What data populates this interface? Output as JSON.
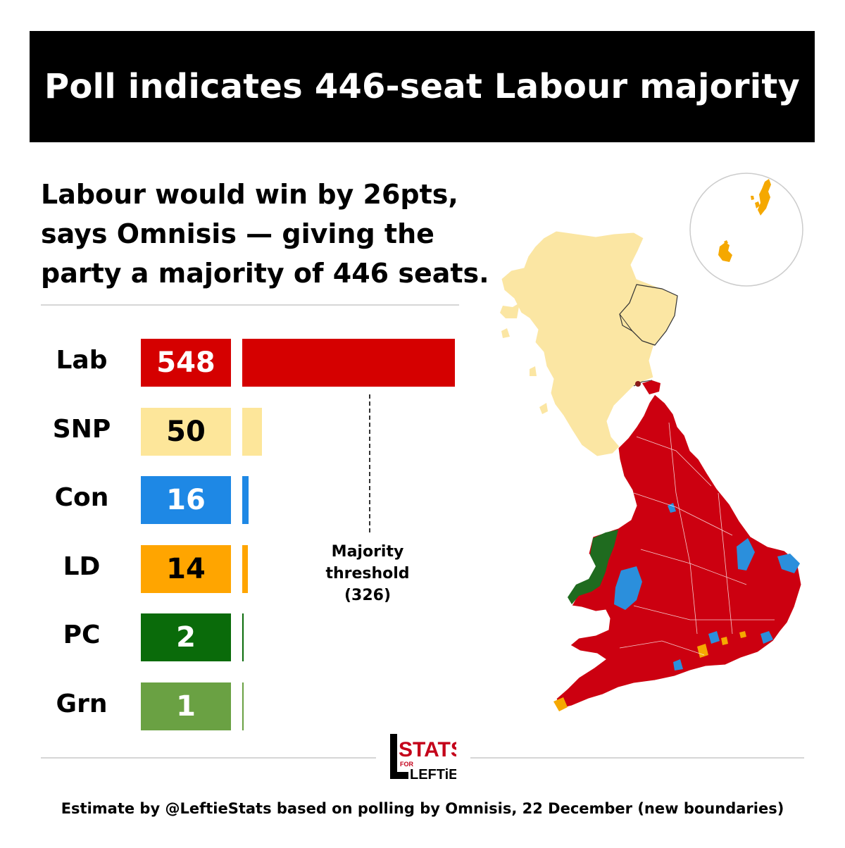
{
  "header": {
    "title": "Poll indicates 446-seat Labour majority"
  },
  "subtitle_lines": [
    "Labour would win by 26pts,",
    "says Omnisis — giving the",
    "party a majority of 446 seats."
  ],
  "chart_data": {
    "type": "bar",
    "orientation": "horizontal",
    "categories": [
      "Lab",
      "SNP",
      "Con",
      "LD",
      "PC",
      "Grn"
    ],
    "values": [
      548,
      50,
      16,
      14,
      2,
      1
    ],
    "colors": [
      "#d50000",
      "#fde69a",
      "#1e88e5",
      "#ffa500",
      "#0a6b0a",
      "#6aa143"
    ],
    "label_colors": [
      "#ffffff",
      "#000000",
      "#ffffff",
      "#000000",
      "#ffffff",
      "#ffffff"
    ],
    "reference_line": {
      "value": 326,
      "label_lines": [
        "Majority",
        "threshold",
        "(326)"
      ]
    },
    "xlim": [
      0,
      548
    ],
    "grid": false
  },
  "map": {
    "colors": {
      "lab": "#cc0010",
      "snp": "#fbe6a3",
      "con": "#2b8fdc",
      "ld": "#f5a800",
      "pc": "#1f6b1f",
      "border": "#ffffff"
    }
  },
  "logo": {
    "line1": "STATS",
    "small": "FOR",
    "line2": "LEFTiES"
  },
  "footer": {
    "text": "Estimate by @LeftieStats based on polling by Omnisis, 22 December (new boundaries)"
  }
}
